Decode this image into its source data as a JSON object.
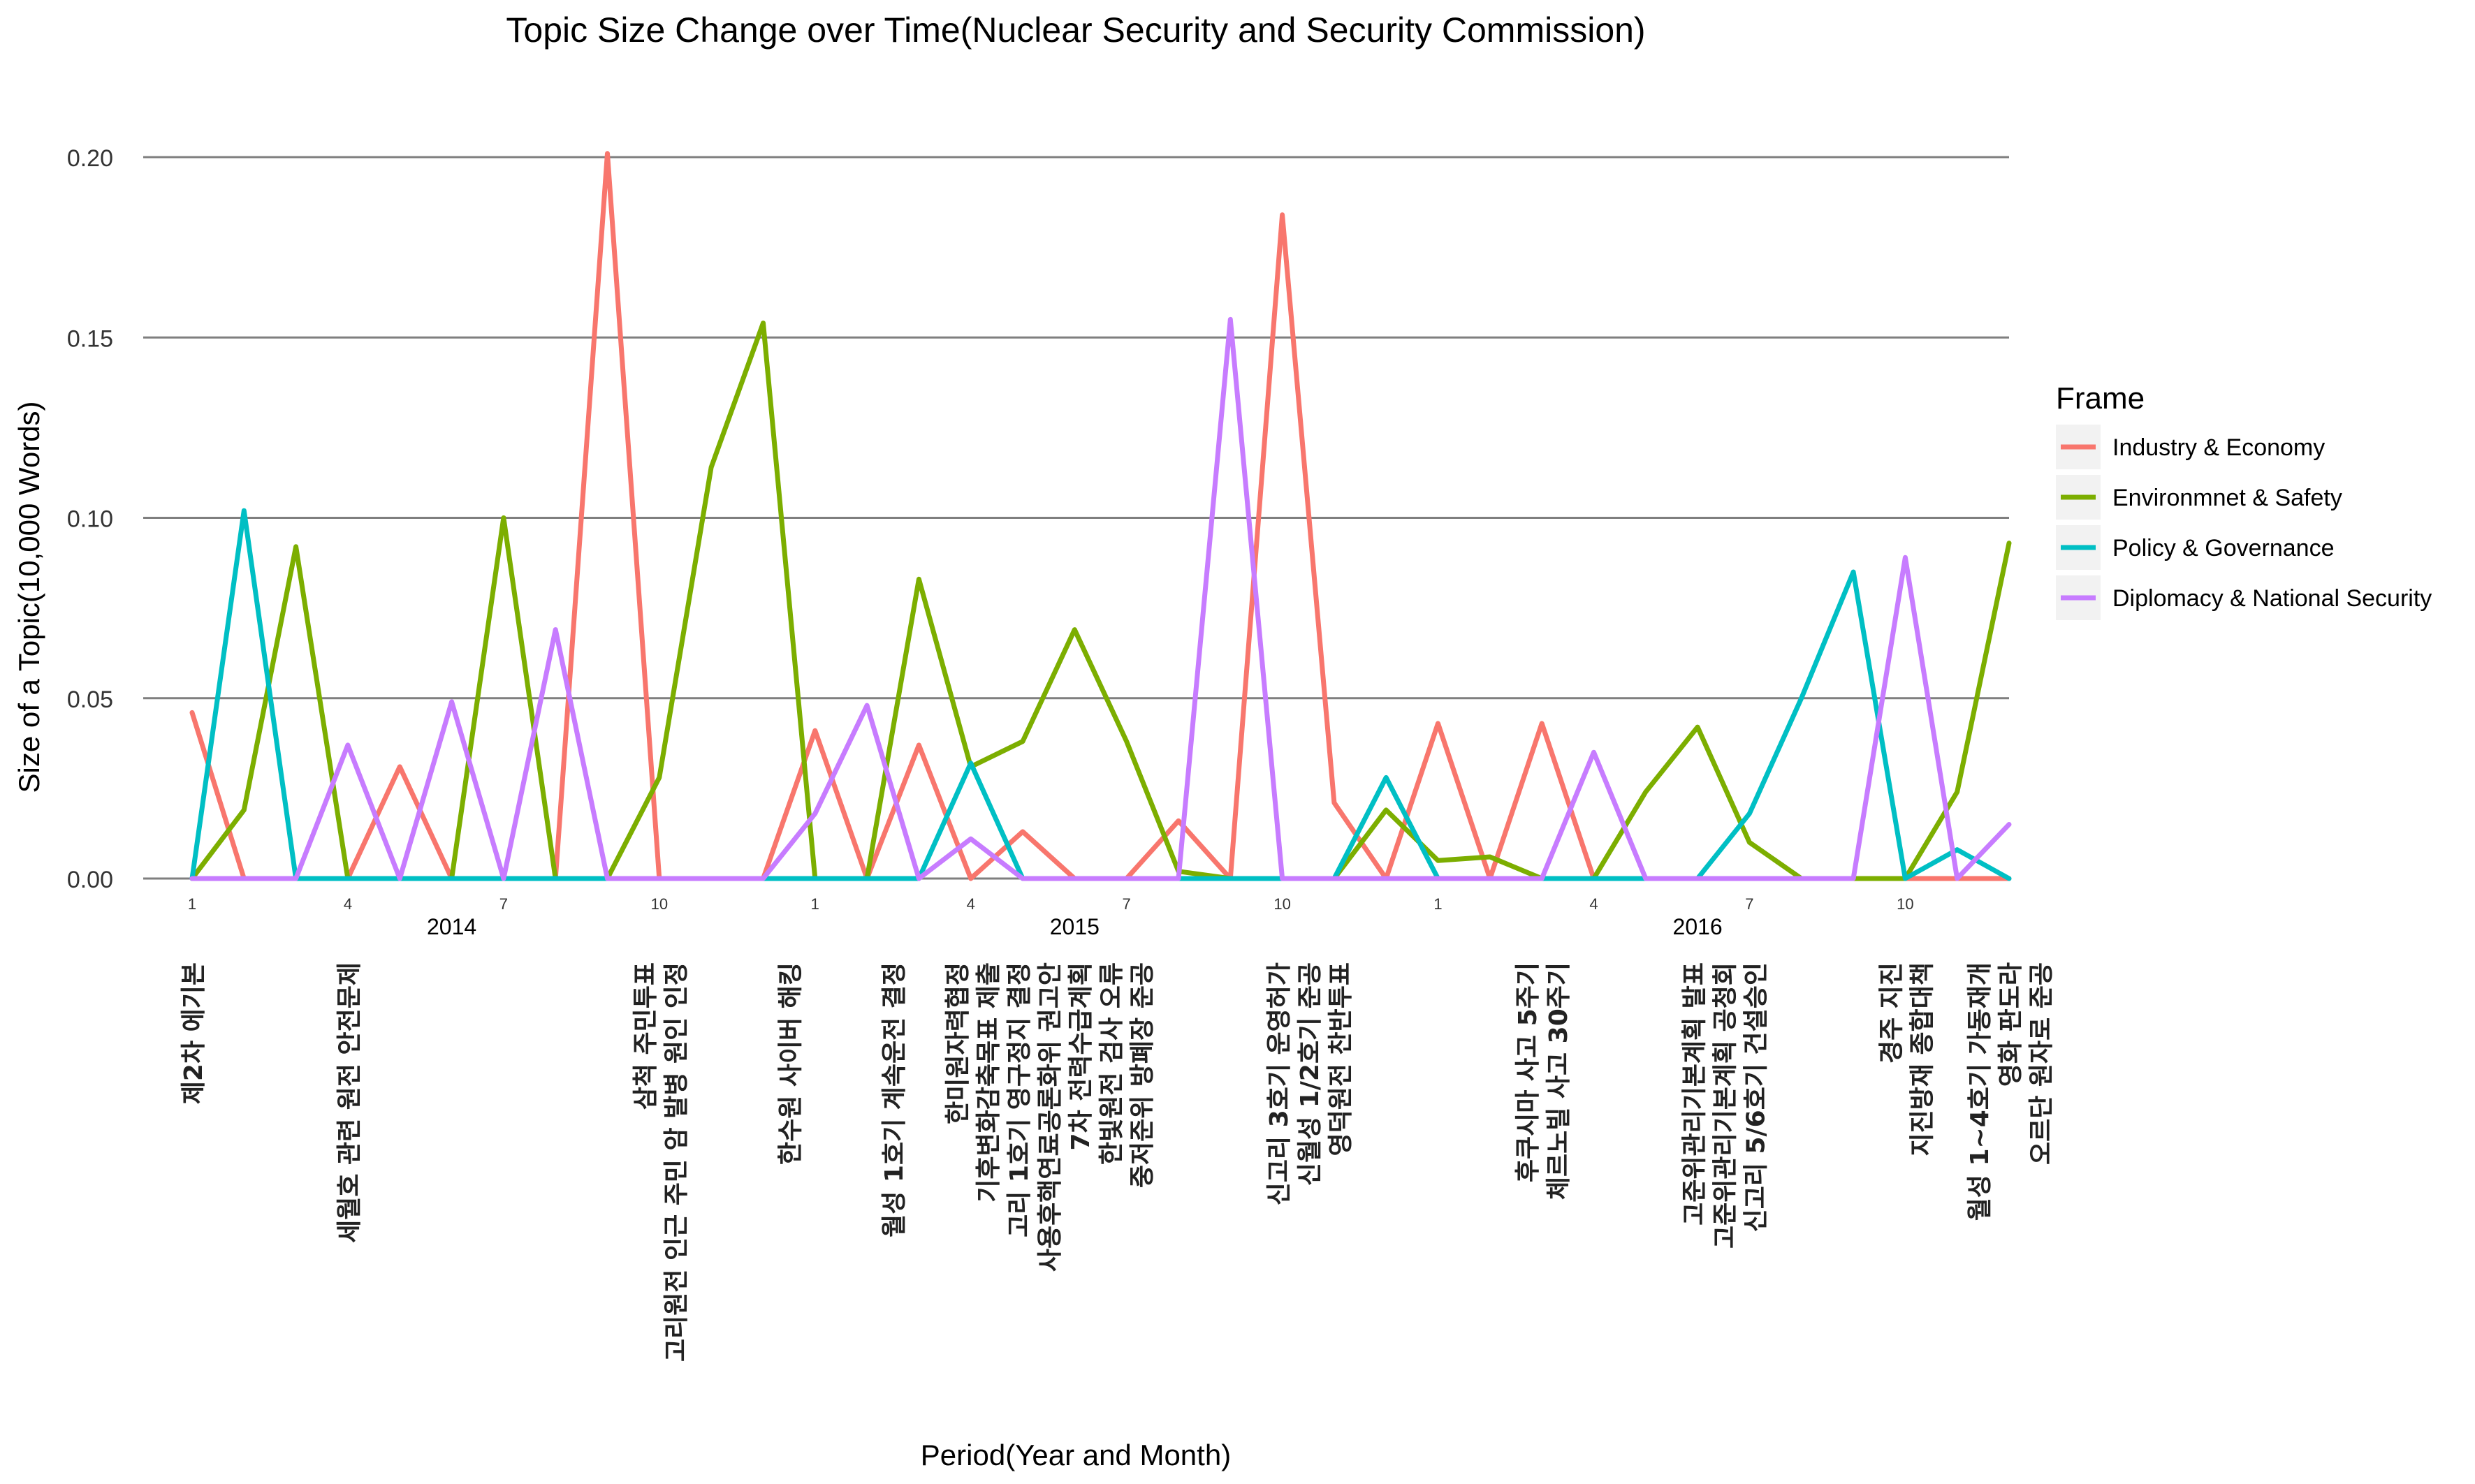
{
  "chart_data": {
    "type": "line",
    "title": "Topic Size Change over Time(Nuclear Security and Security Commission)",
    "xlabel": "Period(Year and Month)",
    "ylabel": "Size of a Topic(10,000 Words)",
    "ylim": [
      0,
      0.2
    ],
    "yticks": [
      "0.00",
      "0.05",
      "0.10",
      "0.15",
      "0.20"
    ],
    "grid": "horizontal",
    "month_ticks": [
      {
        "index": 1,
        "label": "1"
      },
      {
        "index": 4,
        "label": "4"
      },
      {
        "index": 7,
        "label": "7"
      },
      {
        "index": 10,
        "label": "10"
      },
      {
        "index": 13,
        "label": "1"
      },
      {
        "index": 16,
        "label": "4"
      },
      {
        "index": 19,
        "label": "7"
      },
      {
        "index": 22,
        "label": "10"
      },
      {
        "index": 25,
        "label": "1"
      },
      {
        "index": 28,
        "label": "4"
      },
      {
        "index": 31,
        "label": "7"
      },
      {
        "index": 34,
        "label": "10"
      }
    ],
    "year_labels": [
      {
        "index": 6,
        "label": "2014"
      },
      {
        "index": 18,
        "label": "2015"
      },
      {
        "index": 30,
        "label": "2016"
      }
    ],
    "legend": {
      "title": "Frame",
      "position": "right"
    },
    "x": [
      1,
      2,
      3,
      4,
      5,
      6,
      7,
      8,
      9,
      10,
      11,
      12,
      13,
      14,
      15,
      16,
      17,
      18,
      19,
      20,
      21,
      22,
      23,
      24,
      25,
      26,
      27,
      28,
      29,
      30,
      31,
      32,
      33,
      34,
      35,
      36
    ],
    "series": [
      {
        "name": "Industry & Economy",
        "color": "#F8766D",
        "values": [
          0.046,
          0,
          0,
          0,
          0.031,
          0,
          0,
          0,
          0.201,
          0,
          0,
          0,
          0.041,
          0,
          0.037,
          0,
          0.013,
          0,
          0,
          0.016,
          0,
          0.184,
          0.021,
          0,
          0.043,
          0,
          0.043,
          0,
          0,
          0,
          0,
          0,
          0,
          0,
          0,
          0
        ]
      },
      {
        "name": "Environmnet & Safety",
        "color": "#7CAE00",
        "values": [
          0,
          0.019,
          0.092,
          0,
          0,
          0,
          0.1,
          0,
          0,
          0.028,
          0.114,
          0.154,
          0,
          0,
          0.083,
          0.031,
          0.038,
          0.069,
          0.038,
          0.002,
          0,
          0,
          0,
          0.019,
          0.005,
          0.006,
          0,
          0,
          0.024,
          0.042,
          0.01,
          0,
          0,
          0,
          0.024,
          0.093
        ]
      },
      {
        "name": "Policy & Governance",
        "color": "#00BFC4",
        "values": [
          0,
          0.102,
          0,
          0,
          0,
          0,
          0,
          0,
          0,
          0,
          0,
          0,
          0,
          0,
          0,
          0.032,
          0,
          0,
          0,
          0,
          0,
          0,
          0,
          0.028,
          0,
          0,
          0,
          0,
          0,
          0,
          0.018,
          0.05,
          0.085,
          0,
          0.008,
          0
        ]
      },
      {
        "name": "Diplomacy & National Security",
        "color": "#C77CFF",
        "values": [
          0,
          0,
          0,
          0.037,
          0,
          0.049,
          0,
          0.069,
          0,
          0,
          0,
          0,
          0.018,
          0.048,
          0,
          0.011,
          0,
          0,
          0,
          0,
          0.155,
          0,
          0,
          0,
          0,
          0,
          0,
          0.035,
          0,
          0,
          0,
          0,
          0,
          0.089,
          0,
          0.015
        ]
      }
    ],
    "event_annotations": [
      {
        "index": 1.0,
        "lines": [
          "제2차 에기본"
        ]
      },
      {
        "index": 4.0,
        "lines": [
          "세월호 관련 원전 안전문제"
        ]
      },
      {
        "index": 10.0,
        "lines": [
          "삼척 주민투표",
          "고리원전 인근 주민 암 발병 원인 인정"
        ]
      },
      {
        "index": 12.5,
        "lines": [
          "한수원 사이버 해킹"
        ]
      },
      {
        "index": 14.5,
        "lines": [
          "월성 1호기 계속운전 결정"
        ]
      },
      {
        "index": 17.5,
        "lines": [
          "한미원자력협정",
          "기후변화감축목표 제출",
          "고리 1호기 영구정지 결정",
          "사용후핵연료공론화위 권고안",
          "7차 전력수급계획",
          "한빛원전 검사 오류",
          "중저준위 방폐장 준공"
        ]
      },
      {
        "index": 22.5,
        "lines": [
          "신고리 3호기 운영허가",
          "신월성 1/2호기 준공",
          "영덕원전 찬반투표"
        ]
      },
      {
        "index": 27.0,
        "lines": [
          "후쿠시마 사고 5주기",
          "체르노빌 사고 30주기"
        ]
      },
      {
        "index": 30.5,
        "lines": [
          "고준위관리기본계획 발표",
          "고준위관리기본계획 공청회",
          "신고리 5/6호기 건설승인"
        ]
      },
      {
        "index": 34.0,
        "lines": [
          "경주 지진",
          "지진방재 종합대책"
        ]
      },
      {
        "index": 36.0,
        "lines": [
          "월성 1~4호기 가동재개",
          "영화 판도라",
          "오르단 원자로 준공"
        ]
      }
    ]
  }
}
